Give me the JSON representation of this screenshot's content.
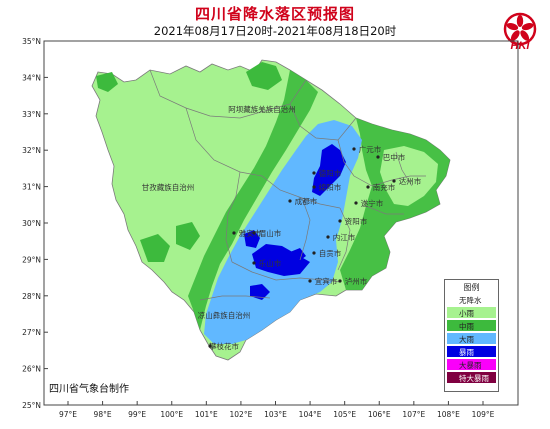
{
  "title": "四川省降水落区预报图",
  "subtitle": "2021年08月17日20时-2021年08月18日20时",
  "logo": {
    "text": "HKI",
    "icon": "hki-flower-logo",
    "color": "#d0021b"
  },
  "producer": "四川省气象台制作",
  "axes": {
    "lat_labels": [
      "35°N",
      "34°N",
      "33°N",
      "32°N",
      "31°N",
      "30°N",
      "29°N",
      "28°N",
      "27°N",
      "26°N",
      "25°N"
    ],
    "lon_labels": [
      "97°E",
      "98°E",
      "99°E",
      "100°E",
      "101°E",
      "102°E",
      "103°E",
      "104°E",
      "105°E",
      "106°E",
      "107°E",
      "108°E",
      "109°E"
    ]
  },
  "regions": [
    "阿坝藏族羌族自治州",
    "甘孜藏族自治州",
    "凉山彝族自治州",
    "攀枝花市",
    "成都市",
    "德阳市",
    "绵阳市",
    "广元市",
    "巴中市",
    "达州市",
    "南充市",
    "遂宁市",
    "资阳市",
    "内江市",
    "自贡市",
    "泸州市",
    "宜宾市",
    "乐山市",
    "眉山市",
    "雅安市"
  ],
  "legend": {
    "title": "图例",
    "items": [
      {
        "label": "无降水",
        "color": "#ffffff"
      },
      {
        "label": "小雨",
        "color": "#a6f28f"
      },
      {
        "label": "中雨",
        "color": "#3dba3d"
      },
      {
        "label": "大雨",
        "color": "#61b8ff"
      },
      {
        "label": "暴雨",
        "color": "#0000e1"
      },
      {
        "label": "大暴雨",
        "color": "#fa00fa"
      },
      {
        "label": "特大暴雨",
        "color": "#800040"
      }
    ]
  },
  "colors": {
    "light_rain": "#a6f28f",
    "moderate_rain": "#3dba3d",
    "heavy_rain": "#61b8ff",
    "rainstorm": "#0000e1",
    "boundary": "#7a7a7a"
  }
}
